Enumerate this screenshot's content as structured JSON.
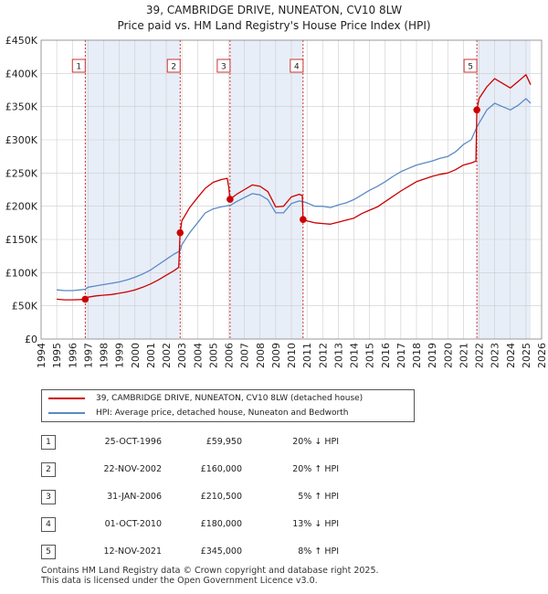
{
  "chart": {
    "title_line1": "39, CAMBRIDGE DRIVE, NUNEATON, CV10 8LW",
    "title_line2": "Price paid vs. HM Land Registry's House Price Index (HPI)"
  },
  "colors": {
    "price_line": "#cc0000",
    "hpi_line": "#5a8ac6",
    "shade": "#e8eef8",
    "marker": "#cc0000",
    "grid": "#cccccc"
  },
  "legend": {
    "price_label": "39, CAMBRIDGE DRIVE, NUNEATON, CV10 8LW (detached house)",
    "hpi_label": "HPI: Average price, detached house, Nuneaton and Bedworth"
  },
  "sales": [
    {
      "num": "1",
      "date": "25-OCT-1996",
      "price": "£59,950",
      "hpi": "20% ↓ HPI"
    },
    {
      "num": "2",
      "date": "22-NOV-2002",
      "price": "£160,000",
      "hpi": "20% ↑ HPI"
    },
    {
      "num": "3",
      "date": "31-JAN-2006",
      "price": "£210,500",
      "hpi": "5% ↑ HPI"
    },
    {
      "num": "4",
      "date": "01-OCT-2010",
      "price": "£180,000",
      "hpi": "13% ↓ HPI"
    },
    {
      "num": "5",
      "date": "12-NOV-2021",
      "price": "£345,000",
      "hpi": "8% ↑ HPI"
    }
  ],
  "footer": {
    "line1": "Contains HM Land Registry data © Crown copyright and database right 2025.",
    "line2": "This data is licensed under the Open Government Licence v3.0."
  },
  "chart_data": {
    "type": "line",
    "title": "39, CAMBRIDGE DRIVE, NUNEATON, CV10 8LW — Price paid vs. HM Land Registry's House Price Index (HPI)",
    "xlabel": "",
    "ylabel": "",
    "xlim": [
      1994,
      2026
    ],
    "ylim": [
      0,
      450000
    ],
    "x_ticks": [
      1994,
      1995,
      1996,
      1997,
      1998,
      1999,
      2000,
      2001,
      2002,
      2003,
      2004,
      2005,
      2006,
      2007,
      2008,
      2009,
      2010,
      2011,
      2012,
      2013,
      2014,
      2015,
      2016,
      2017,
      2018,
      2019,
      2020,
      2021,
      2022,
      2023,
      2024,
      2025,
      2026
    ],
    "y_ticks": [
      {
        "value": 0,
        "label": "£0"
      },
      {
        "value": 50000,
        "label": "£50K"
      },
      {
        "value": 100000,
        "label": "£100K"
      },
      {
        "value": 150000,
        "label": "£150K"
      },
      {
        "value": 200000,
        "label": "£200K"
      },
      {
        "value": 250000,
        "label": "£250K"
      },
      {
        "value": 300000,
        "label": "£300K"
      },
      {
        "value": 350000,
        "label": "£350K"
      },
      {
        "value": 400000,
        "label": "£400K"
      },
      {
        "value": 450000,
        "label": "£450K"
      }
    ],
    "shaded_ranges": [
      [
        1996.82,
        2002.89
      ],
      [
        2006.08,
        2010.75
      ],
      [
        2021.86,
        2025.3
      ]
    ],
    "series": [
      {
        "name": "HPI: Average price, detached house, Nuneaton and Bedworth",
        "color": "#5a8ac6",
        "x": [
          1995.0,
          1995.5,
          1996.0,
          1996.5,
          1996.82,
          1997.0,
          1997.5,
          1998.0,
          1998.5,
          1999.0,
          1999.5,
          2000.0,
          2000.5,
          2001.0,
          2001.5,
          2002.0,
          2002.5,
          2002.89,
          2003.0,
          2003.5,
          2004.0,
          2004.5,
          2005.0,
          2005.5,
          2006.0,
          2006.08,
          2006.5,
          2007.0,
          2007.5,
          2008.0,
          2008.5,
          2009.0,
          2009.5,
          2010.0,
          2010.5,
          2010.75,
          2011.0,
          2011.5,
          2012.0,
          2012.5,
          2013.0,
          2013.5,
          2014.0,
          2014.5,
          2015.0,
          2015.5,
          2016.0,
          2016.5,
          2017.0,
          2017.5,
          2018.0,
          2018.5,
          2019.0,
          2019.5,
          2020.0,
          2020.5,
          2021.0,
          2021.5,
          2021.86,
          2022.0,
          2022.5,
          2023.0,
          2023.5,
          2024.0,
          2024.5,
          2025.0,
          2025.3
        ],
        "values": [
          74000,
          73000,
          73000,
          74000,
          75000,
          78000,
          80000,
          82000,
          84000,
          86000,
          89000,
          93000,
          98000,
          104000,
          112000,
          120000,
          128000,
          133000,
          142000,
          160000,
          175000,
          190000,
          196000,
          199000,
          201000,
          201000,
          207000,
          213000,
          219000,
          217000,
          210000,
          190000,
          190000,
          204000,
          208000,
          207000,
          205000,
          200000,
          200000,
          198000,
          202000,
          205000,
          210000,
          217000,
          224000,
          230000,
          237000,
          245000,
          252000,
          257000,
          262000,
          265000,
          268000,
          272000,
          275000,
          282000,
          293000,
          300000,
          319000,
          325000,
          345000,
          355000,
          350000,
          345000,
          352000,
          362000,
          355000
        ]
      },
      {
        "name": "39, CAMBRIDGE DRIVE, NUNEATON, CV10 8LW (detached house)",
        "color": "#cc0000",
        "x": [
          1995.0,
          1995.5,
          1996.0,
          1996.5,
          1996.82,
          1997.0,
          1997.5,
          1998.0,
          1998.5,
          1999.0,
          1999.5,
          2000.0,
          2000.5,
          2001.0,
          2001.5,
          2002.0,
          2002.5,
          2002.8,
          2002.89,
          2003.0,
          2003.5,
          2004.0,
          2004.5,
          2005.0,
          2005.5,
          2005.9,
          2006.0,
          2006.08,
          2006.5,
          2007.0,
          2007.5,
          2008.0,
          2008.5,
          2009.0,
          2009.5,
          2010.0,
          2010.5,
          2010.7,
          2010.75,
          2011.0,
          2011.5,
          2012.0,
          2012.5,
          2013.0,
          2013.5,
          2014.0,
          2014.5,
          2015.0,
          2015.5,
          2016.0,
          2016.5,
          2017.0,
          2017.5,
          2018.0,
          2018.5,
          2019.0,
          2019.5,
          2020.0,
          2020.5,
          2021.0,
          2021.5,
          2021.8,
          2021.86,
          2022.0,
          2022.5,
          2023.0,
          2023.5,
          2024.0,
          2024.5,
          2025.0,
          2025.3
        ],
        "values": [
          60000,
          59000,
          59000,
          59500,
          59950,
          63000,
          65000,
          66000,
          67000,
          69000,
          71000,
          74000,
          78000,
          83000,
          89000,
          96000,
          103000,
          108000,
          160000,
          178000,
          198000,
          213000,
          227000,
          236000,
          240000,
          242000,
          228000,
          210500,
          218000,
          225000,
          232000,
          230000,
          222000,
          199000,
          200000,
          214000,
          218000,
          216000,
          180000,
          178000,
          175000,
          174000,
          173000,
          176000,
          179000,
          182000,
          189000,
          194000,
          199000,
          207000,
          215000,
          223000,
          230000,
          237000,
          241000,
          245000,
          248000,
          250000,
          255000,
          262000,
          265000,
          268000,
          345000,
          362000,
          380000,
          392000,
          385000,
          378000,
          388000,
          398000,
          383000
        ]
      }
    ],
    "sales": [
      {
        "label": "1",
        "x": 1996.82,
        "y": 59950
      },
      {
        "label": "2",
        "x": 2002.89,
        "y": 160000
      },
      {
        "label": "3",
        "x": 2006.08,
        "y": 210500
      },
      {
        "label": "4",
        "x": 2010.75,
        "y": 180000
      },
      {
        "label": "5",
        "x": 2021.86,
        "y": 345000
      }
    ]
  }
}
